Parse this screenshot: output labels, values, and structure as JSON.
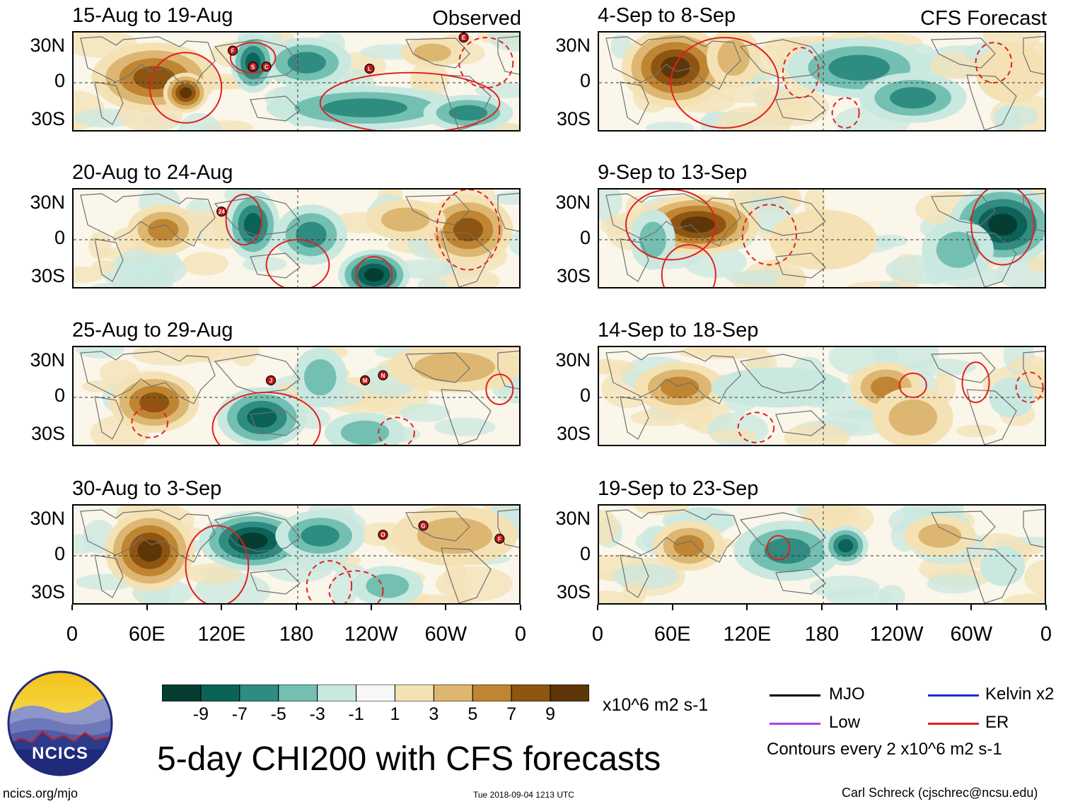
{
  "chart_data": {
    "type": "heatmap",
    "title": "5-day CHI200 with CFS forecasts",
    "units": "x10^6 m2 s-1",
    "column_labels": [
      "Observed",
      "CFS Forecast"
    ],
    "lat_ticks": [
      "30N",
      "0",
      "30S"
    ],
    "lon_ticks": [
      "0",
      "60E",
      "120E",
      "180",
      "120W",
      "60W",
      "0"
    ],
    "colorbar_ticks": [
      "-9",
      "-7",
      "-5",
      "-3",
      "-1",
      "1",
      "3",
      "5",
      "7",
      "9"
    ],
    "colorbar_colors": [
      "#053d33",
      "#0b6358",
      "#2f8c80",
      "#73c0b2",
      "#c9e8e0",
      "#f7f7f7",
      "#f4e2b5",
      "#ddb771",
      "#bf8532",
      "#8e5512",
      "#5e3608"
    ],
    "panels": [
      {
        "id": "p1",
        "column": "Observed",
        "period": "15-Aug to 19-Aug"
      },
      {
        "id": "p2",
        "column": "Observed",
        "period": "20-Aug to 24-Aug"
      },
      {
        "id": "p3",
        "column": "Observed",
        "period": "25-Aug to 29-Aug"
      },
      {
        "id": "p4",
        "column": "Observed",
        "period": "30-Aug to 3-Sep"
      },
      {
        "id": "p5",
        "column": "CFS Forecast",
        "period": "4-Sep to 8-Sep"
      },
      {
        "id": "p6",
        "column": "CFS Forecast",
        "period": "9-Sep to 13-Sep"
      },
      {
        "id": "p7",
        "column": "CFS Forecast",
        "period": "14-Sep to 18-Sep"
      },
      {
        "id": "p8",
        "column": "CFS Forecast",
        "period": "19-Sep to 23-Sep"
      }
    ],
    "legend": {
      "items": [
        {
          "label": "MJO",
          "color": "#000000"
        },
        {
          "label": "Kelvin x2",
          "color": "#1a2fcf"
        },
        {
          "label": "Low",
          "color": "#a545e0"
        },
        {
          "label": "ER",
          "color": "#e02020"
        }
      ],
      "note": "Contours every 2 x10^6 m2 s-1"
    }
  },
  "storm_markers": {
    "p1": [
      "F",
      "S",
      "C",
      "L",
      "E"
    ],
    "p2": [
      "24"
    ],
    "p3": [
      "J",
      "M",
      "N"
    ],
    "p4": [
      "O",
      "G",
      "F"
    ]
  },
  "footer": {
    "left": "ncics.org/mjo",
    "center": "Tue 2018-09-04 1213 UTC",
    "right": "Carl Schreck (cjschrec@ncsu.edu)"
  },
  "logo": {
    "text": "NCICS"
  }
}
